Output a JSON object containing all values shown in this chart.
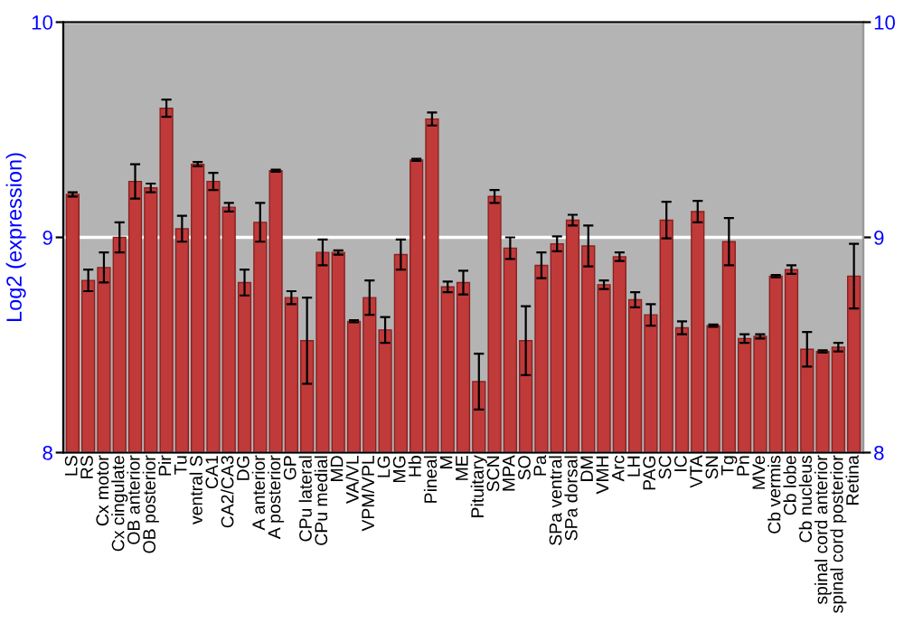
{
  "chart_data": {
    "type": "bar",
    "ylabel": "Log2 (expression)",
    "categories": [
      "LS",
      "RS",
      "Cx motor",
      "Cx cingulate",
      "OB anterior",
      "OB posterior",
      "Pir",
      "Tu",
      "ventral S",
      "CA1",
      "CA2/CA3",
      "DG",
      "A anterior",
      "A posterior",
      "GP",
      "CPu lateral",
      "CPu medial",
      "MD",
      "VA/VL",
      "VPM/VPL",
      "LG",
      "MG",
      "Hb",
      "Pineal",
      "M",
      "ME",
      "Pituitary",
      "SCN",
      "MPA",
      "SO",
      "Pa",
      "SPa ventral",
      "SPa dorsal",
      "DM",
      "VMH",
      "Arc",
      "LH",
      "PAG",
      "SC",
      "IC",
      "VTA",
      "SN",
      "Tg",
      "Pn",
      "MVe",
      "Cb vermis",
      "Cb lobe",
      "Cb nucleus",
      "spinal cord anterior",
      "spinal cord posterior",
      "Retina"
    ],
    "values": [
      9.2,
      8.8,
      8.86,
      9.0,
      9.26,
      9.23,
      9.6,
      9.04,
      9.34,
      9.26,
      9.14,
      8.79,
      9.07,
      9.31,
      8.72,
      8.52,
      8.93,
      8.93,
      8.61,
      8.72,
      8.57,
      8.92,
      9.36,
      9.55,
      8.77,
      8.79,
      8.33,
      9.19,
      8.95,
      8.52,
      8.87,
      8.97,
      9.08,
      8.96,
      8.78,
      8.91,
      8.71,
      8.64,
      9.08,
      8.58,
      9.12,
      8.59,
      8.98,
      8.53,
      8.54,
      8.82,
      8.85,
      8.48,
      8.47,
      8.49,
      8.82
    ],
    "errors": [
      0.01,
      0.05,
      0.07,
      0.07,
      0.08,
      0.02,
      0.04,
      0.06,
      0.01,
      0.04,
      0.02,
      0.06,
      0.09,
      0.005,
      0.03,
      0.2,
      0.06,
      0.01,
      0.005,
      0.08,
      0.06,
      0.07,
      0.005,
      0.03,
      0.025,
      0.055,
      0.13,
      0.03,
      0.05,
      0.16,
      0.06,
      0.035,
      0.025,
      0.095,
      0.02,
      0.02,
      0.035,
      0.05,
      0.085,
      0.03,
      0.05,
      0.005,
      0.11,
      0.02,
      0.01,
      0.005,
      0.02,
      0.08,
      0.005,
      0.02,
      0.15
    ],
    "color": "#c03a3a",
    "ylim": [
      8,
      10
    ],
    "yticks": [
      8,
      9,
      10
    ],
    "y2lim": [
      8,
      10
    ],
    "y2ticks": [
      8,
      9,
      10
    ],
    "grid": "y"
  }
}
